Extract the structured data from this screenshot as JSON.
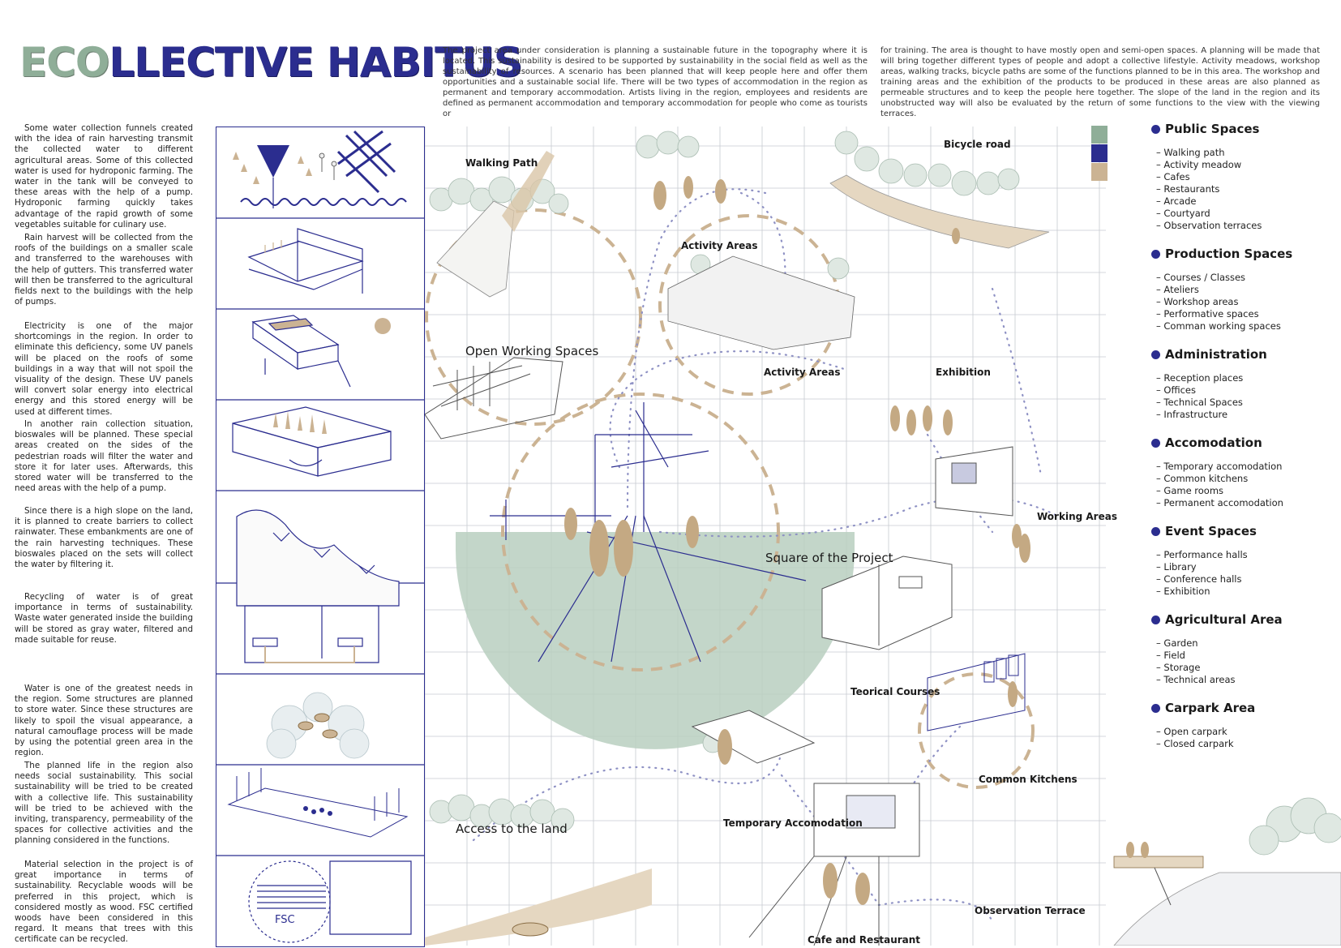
{
  "title": {
    "eco": "ECO",
    "rest": "LLECTIVE HABITUS"
  },
  "intro": {
    "col1": "The project area under consideration is planning a sustainable future in the topography where it is located. This sustainability is desired to be supported by sustainability in the social field as well as the sustainability of resources. A scenario has been planned that will keep people here and offer them opportunities and a sustainable social life. There will be two types of accommodation in the region as permanent and temporary accommodation. Artists living in the region, employees and residents are defined as permanent accommodation and temporary accommodation for people who come as tourists or",
    "col2": "for training. The area is thought to have mostly open and semi-open spaces. A planning will be made that will bring together different types of people and adopt a collective lifestyle. Activity meadows, workshop areas, walking tracks, bicycle paths are some of the functions planned to be in this area. The workshop and training areas and the exhibition of the products to be produced in these areas are also planned as permeable structures and to keep the people here together. The slope of the land in the region and its unobstructed way will also be evaluated by the return of some functions to the view with the viewing terraces."
  },
  "left_paragraphs": [
    "Some water collection funnels created with the idea of rain harvesting transmit the collected water to different agricultural areas. Some of this collected water is used for hydroponic farming. The water in the tank will be conveyed to these areas with the help of a pump. Hydroponic farming quickly takes advantage of the rapid growth of some vegetables suitable for culinary use.",
    "Rain harvest will be collected from the roofs of the buildings on a smaller scale and transferred to the warehouses with the help of gutters. This transferred water will then be transferred to the agricultural fields next to the buildings with the help of pumps.",
    "Electricity is one of the major shortcomings in the region. In order to eliminate this deficiency, some UV panels will be placed on the roofs of some buildings in a way that will not spoil the visuality of the design. These UV panels will convert solar energy into electrical energy and this stored energy will be used at different times.",
    "In another rain collection situation, bioswales will be planned. These special areas created on the sides of the pedestrian roads will filter the water and store it for later uses. Afterwards, this stored water will be transferred to the need areas with the help of a pump.",
    "Since there is a high slope on the land, it is planned to create barriers to collect rainwater. These embankments are one of the rain harvesting techniques. These bioswales placed on the sets will collect the water by filtering it.",
    "Recycling of water is of great importance in terms of sustainability. Waste water generated inside the building will be stored as gray water, filtered and made suitable for reuse.",
    "Water is one of the greatest needs in the region. Some structures are planned to store water. Since these structures are likely to spoil the visual appearance, a natural camouflage process will be made by using the potential green area in the region.",
    "The planned life in the region also needs social sustainability. This social sustainability will be tried to be created with a collective life. This sustainability will be tried to be achieved with the inviting, transparency, permeability of the spaces for collective activities and the planning considered in the functions.",
    "Material selection in the project is of great importance in terms of sustainability. Recyclable woods will be preferred in this project, which is considered mostly as wood. FSC certified woods have been considered in this regard. It means that trees with this certificate can be recycled."
  ],
  "strip": {
    "fsc_label": "FSC"
  },
  "map_labels": {
    "walking_path": "Walking Path",
    "bicycle_road": "Bicycle road",
    "activity_areas_1": "Activity Areas",
    "activity_areas_2": "Activity Areas",
    "open_working": "Open Working Spaces",
    "exhibition": "Exhibition",
    "working_areas": "Working Areas",
    "square": "Square of the Project",
    "teorical": "Teorical Courses",
    "common_kitchens": "Common Kitchens",
    "temporary": "Temporary Accomodation",
    "access": "Access to the land",
    "observation": "Observation Terrace",
    "cafe": "Cafe and Restaurant"
  },
  "colors": {
    "green": "#8fae98",
    "navy": "#2b2d8f",
    "tan": "#cbb393",
    "grid": "#b9bcc4"
  },
  "legend": [
    {
      "title": "Public Spaces",
      "items": [
        "Walking path",
        "Activity meadow",
        "Cafes",
        "Restaurants",
        "Arcade",
        "Courtyard",
        "Observation terraces"
      ]
    },
    {
      "title": "Production Spaces",
      "items": [
        "Courses / Classes",
        "Ateliers",
        "Workshop areas",
        "Performative spaces",
        "Comman working spaces"
      ]
    },
    {
      "title": "Administration",
      "items": [
        "Reception places",
        "Offices",
        "Technical Spaces",
        "Infrastructure"
      ]
    },
    {
      "title": "Accomodation",
      "items": [
        "Temporary accomodation",
        "Common kitchens",
        "Game rooms",
        "Permanent accomodation"
      ]
    },
    {
      "title": "Event Spaces",
      "items": [
        "Performance halls",
        "Library",
        "Conference halls",
        "Exhibition"
      ]
    },
    {
      "title": "Agricultural Area",
      "items": [
        "Garden",
        "Field",
        "Storage",
        "Technical areas"
      ]
    },
    {
      "title": "Carpark Area",
      "items": [
        "Open carpark",
        "Closed carpark"
      ]
    }
  ]
}
